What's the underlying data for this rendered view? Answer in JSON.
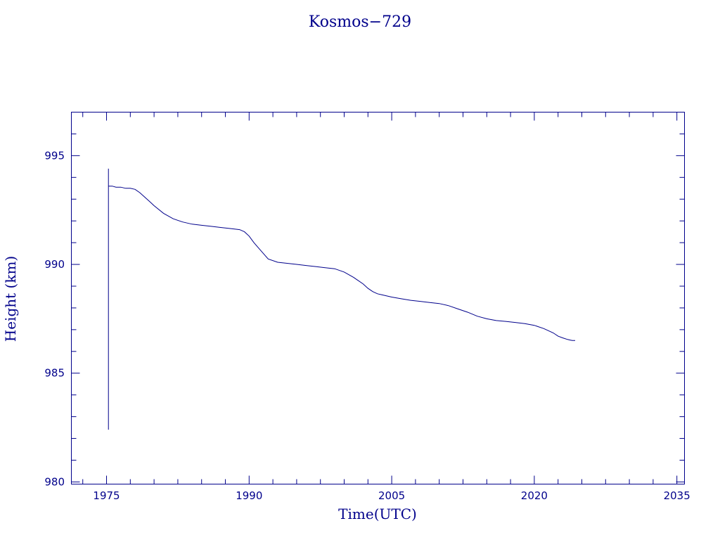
{
  "chart_data": {
    "type": "line",
    "title": "Kosmos−729",
    "xlabel": "Time(UTC)",
    "ylabel": "Height (km)",
    "xlim": [
      1971.3,
      2035.8
    ],
    "ylim": [
      979.9,
      997.0
    ],
    "x_major_ticks": [
      1975,
      1990,
      2005,
      2020,
      2035
    ],
    "x_tick_labels": [
      "1975",
      "1990",
      "2005",
      "2020",
      "2035"
    ],
    "x_minor_step": 2.5,
    "y_major_ticks": [
      980,
      985,
      990,
      995
    ],
    "y_tick_labels": [
      "980",
      "985",
      "990",
      "995"
    ],
    "y_minor_step": 1,
    "grid": false,
    "colors": {
      "axis": "#00008b",
      "series": "#00008b",
      "background": "#ffffff"
    },
    "series": [
      {
        "spike": {
          "x": 1975.2,
          "ymin": 982.4,
          "ymax": 994.4
        },
        "x": [
          1975.2,
          1975.6,
          1976.0,
          1976.5,
          1977.0,
          1977.5,
          1978.0,
          1978.5,
          1979.0,
          1979.5,
          1980.0,
          1981.0,
          1982.0,
          1983.0,
          1984.0,
          1985.0,
          1986.0,
          1987.0,
          1988.0,
          1989.0,
          1989.5,
          1990.0,
          1990.5,
          1991.0,
          1991.5,
          1992.0,
          1993.0,
          1994.0,
          1995.0,
          1996.0,
          1997.0,
          1998.0,
          1999.0,
          2000.0,
          2001.0,
          2002.0,
          2002.5,
          2003.0,
          2003.5,
          2004.0,
          2005.0,
          2006.0,
          2007.0,
          2008.0,
          2009.0,
          2010.0,
          2011.0,
          2012.0,
          2013.0,
          2014.0,
          2015.0,
          2016.0,
          2017.0,
          2018.0,
          2019.0,
          2020.0,
          2021.0,
          2021.5,
          2022.0,
          2022.5,
          2023.0,
          2023.5,
          2023.8,
          2024.0,
          2024.3
        ],
        "y": [
          993.6,
          993.6,
          993.55,
          993.55,
          993.5,
          993.5,
          993.45,
          993.3,
          993.1,
          992.9,
          992.7,
          992.35,
          992.1,
          991.95,
          991.85,
          991.8,
          991.75,
          991.7,
          991.65,
          991.6,
          991.5,
          991.3,
          991.0,
          990.75,
          990.5,
          990.25,
          990.1,
          990.05,
          990.0,
          989.95,
          989.9,
          989.85,
          989.8,
          989.65,
          989.4,
          989.1,
          988.9,
          988.75,
          988.65,
          988.6,
          988.5,
          988.42,
          988.35,
          988.3,
          988.25,
          988.2,
          988.1,
          987.95,
          987.8,
          987.62,
          987.5,
          987.42,
          987.38,
          987.33,
          987.28,
          987.2,
          987.05,
          986.95,
          986.85,
          986.7,
          986.62,
          986.55,
          986.52,
          986.5,
          986.5
        ]
      }
    ]
  }
}
